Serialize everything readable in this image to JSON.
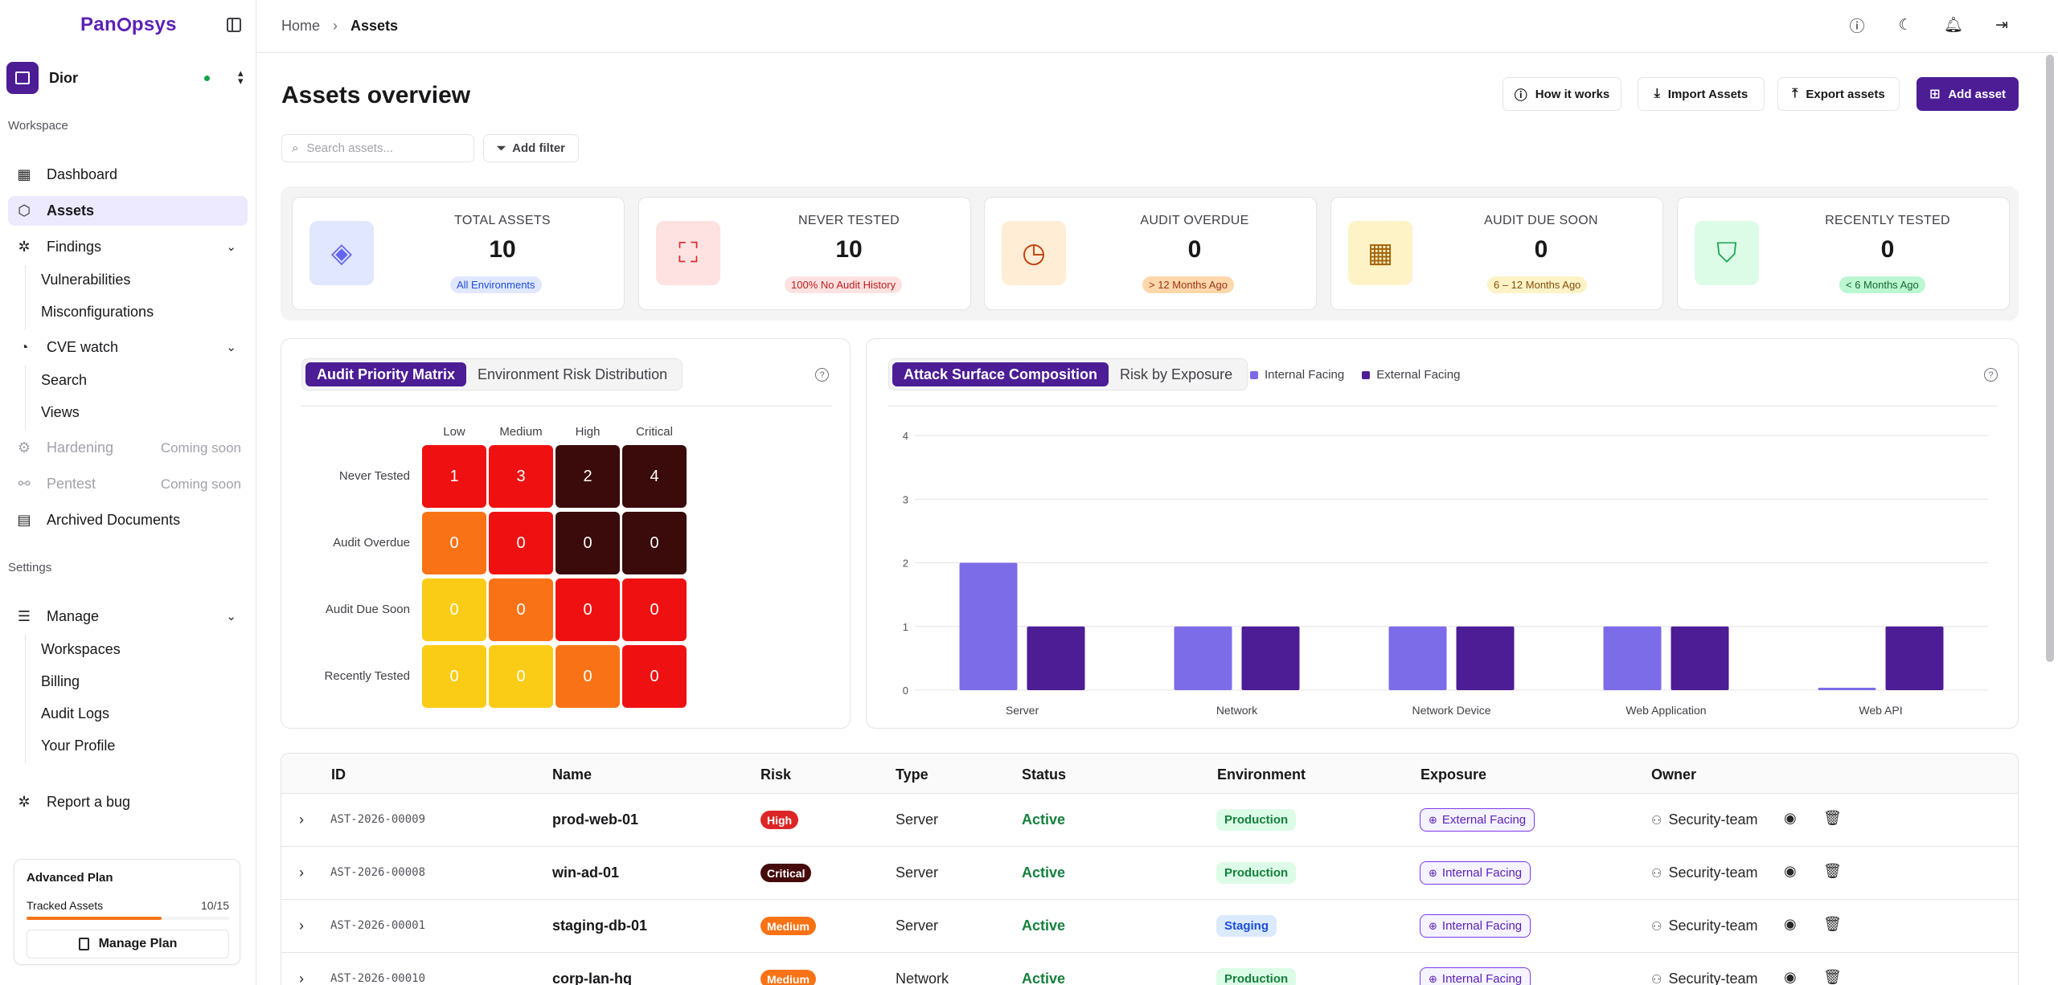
{
  "brand": {
    "name_pre": "Pan",
    "name_post": "psys"
  },
  "org": {
    "name": "Dior"
  },
  "sidebar": {
    "workspace_label": "Workspace",
    "settings_label": "Settings",
    "items": {
      "dashboard": "Dashboard",
      "assets": "Assets",
      "findings": "Findings",
      "vulnerabilities": "Vulnerabilities",
      "misconfigurations": "Misconfigurations",
      "cve_watch": "CVE watch",
      "search": "Search",
      "views": "Views",
      "hardening": "Hardening",
      "pentest": "Pentest",
      "coming_soon": "Coming soon",
      "archived": "Archived Documents",
      "manage": "Manage",
      "workspaces": "Workspaces",
      "billing": "Billing",
      "audit_logs": "Audit Logs",
      "profile": "Your Profile",
      "report_bug": "Report a bug"
    },
    "plan": {
      "title": "Advanced Plan",
      "tracked_label": "Tracked Assets",
      "tracked_count": "10/15",
      "tracked_fraction": 0.667,
      "button": "Manage Plan"
    }
  },
  "breadcrumb": {
    "home": "Home",
    "current": "Assets"
  },
  "page": {
    "title": "Assets overview"
  },
  "actions": {
    "how": "How it works",
    "import": "Import Assets",
    "export": "Export assets",
    "add": "Add asset"
  },
  "search": {
    "placeholder": "Search assets..."
  },
  "filter": {
    "label": "Add filter"
  },
  "stats": [
    {
      "label": "TOTAL ASSETS",
      "value": "10",
      "badge": "All Environments"
    },
    {
      "label": "NEVER TESTED",
      "value": "10",
      "badge": "100% No Audit History"
    },
    {
      "label": "AUDIT OVERDUE",
      "value": "0",
      "badge": "> 12 Months Ago"
    },
    {
      "label": "AUDIT DUE SOON",
      "value": "0",
      "badge": "6 – 12 Months Ago"
    },
    {
      "label": "RECENTLY TESTED",
      "value": "0",
      "badge": "< 6 Months Ago"
    }
  ],
  "matrix": {
    "tab_active": "Audit Priority Matrix",
    "tab_other": "Environment Risk Distribution",
    "columns": [
      "Low",
      "Medium",
      "High",
      "Critical"
    ],
    "rows": [
      "Never Tested",
      "Audit Overdue",
      "Audit Due Soon",
      "Recently Tested"
    ],
    "values": [
      [
        "1",
        "3",
        "2",
        "4"
      ],
      [
        "0",
        "0",
        "0",
        "0"
      ],
      [
        "0",
        "0",
        "0",
        "0"
      ],
      [
        "0",
        "0",
        "0",
        "0"
      ]
    ],
    "colors": [
      [
        "#ef1111",
        "#ef1111",
        "#3b0a0a",
        "#3b0a0a"
      ],
      [
        "#f97316",
        "#ef1111",
        "#3b0a0a",
        "#3b0a0a"
      ],
      [
        "#facc15",
        "#f97316",
        "#ef1111",
        "#ef1111"
      ],
      [
        "#facc15",
        "#facc15",
        "#f97316",
        "#ef1111"
      ]
    ]
  },
  "chart_data": {
    "type": "bar",
    "tab_active": "Attack Surface Composition",
    "tab_other": "Risk by Exposure",
    "categories": [
      "Server",
      "Network",
      "Network Device",
      "Web Application",
      "Web API"
    ],
    "series": [
      {
        "name": "Internal Facing",
        "color": "#7c6ce8",
        "values": [
          2,
          1,
          1,
          1,
          0
        ]
      },
      {
        "name": "External Facing",
        "color": "#4c1d95",
        "values": [
          1,
          1,
          1,
          1,
          1
        ]
      }
    ],
    "yticks": [
      "0",
      "1",
      "2",
      "3",
      "4"
    ],
    "ylim": [
      0,
      4
    ]
  },
  "table": {
    "headers": {
      "id": "ID",
      "name": "Name",
      "risk": "Risk",
      "type": "Type",
      "status": "Status",
      "env": "Environment",
      "exposure": "Exposure",
      "owner": "Owner"
    },
    "rows": [
      {
        "id": "AST-2026-00009",
        "name": "prod-web-01",
        "risk": "High",
        "risk_color": "#dc2626",
        "type": "Server",
        "status": "Active",
        "env": "Production",
        "exposure": "External Facing",
        "owner": "Security-team"
      },
      {
        "id": "AST-2026-00008",
        "name": "win-ad-01",
        "risk": "Critical",
        "risk_color": "#450a0a",
        "type": "Server",
        "status": "Active",
        "env": "Production",
        "exposure": "Internal Facing",
        "owner": "Security-team"
      },
      {
        "id": "AST-2026-00001",
        "name": "staging-db-01",
        "risk": "Medium",
        "risk_color": "#f97316",
        "type": "Server",
        "status": "Active",
        "env": "Staging",
        "exposure": "Internal Facing",
        "owner": "Security-team"
      },
      {
        "id": "AST-2026-00010",
        "name": "corp-lan-hq",
        "risk": "Medium",
        "risk_color": "#f97316",
        "type": "Network",
        "status": "Active",
        "env": "Production",
        "exposure": "Internal Facing",
        "owner": "Security-team"
      }
    ]
  }
}
